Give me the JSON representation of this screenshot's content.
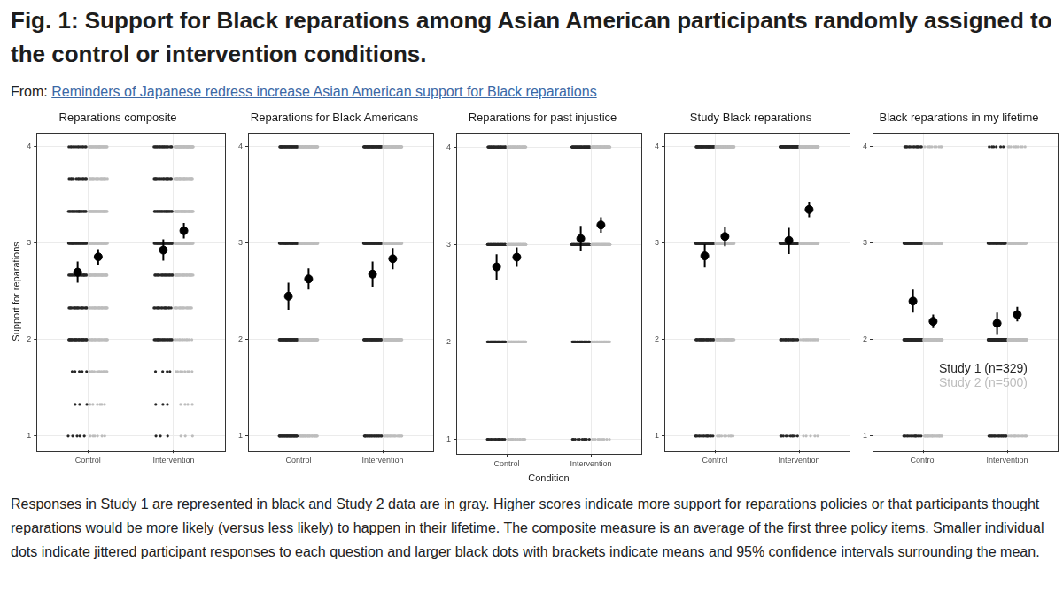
{
  "figure_title": "Fig. 1: Support for Black reparations among Asian American participants randomly assigned to the control or intervention conditions.",
  "source": {
    "prefix": "From:",
    "link_text": "Reminders of Japanese redress increase Asian American support for Black reparations"
  },
  "caption": "Responses in Study 1 are represented in black and Study 2 data are in gray. Higher scores indicate more support for reparations policies or that participants thought reparations would be more likely (versus less likely) to happen in their lifetime. The composite measure is an average of the first three policy items. Smaller individual dots indicate jittered participant responses to each question and larger black dots with brackets indicate means and 95% confidence intervals surrounding the mean.",
  "chart_data": [
    {
      "type": "scatter",
      "title": "Reparations composite",
      "ylabel": "Support for reparations",
      "categories": [
        "Control",
        "Intervention"
      ],
      "ylim": [
        0.85,
        4.15
      ],
      "yticks": [
        1,
        2,
        3,
        4
      ],
      "grid": true,
      "response_levels": [
        1,
        1.33,
        1.67,
        2,
        2.33,
        2.67,
        3,
        3.33,
        3.67,
        4
      ],
      "series": [
        {
          "color": "#262626",
          "values": [
            2.7,
            2.93
          ],
          "ci_low": [
            2.59,
            2.82
          ],
          "ci_high": [
            2.81,
            3.04
          ],
          "response_counts": [
            [
              5,
              3,
              5,
              30,
              18,
              22,
              35,
              22,
              12,
              13
            ],
            [
              3,
              3,
              4,
              22,
              15,
              20,
              40,
              22,
              15,
              20
            ]
          ]
        },
        {
          "color": "#bdbdbd",
          "values": [
            2.86,
            3.13
          ],
          "ci_low": [
            2.78,
            3.05
          ],
          "ci_high": [
            2.94,
            3.21
          ],
          "response_counts": [
            [
              6,
              6,
              12,
              25,
              25,
              38,
              50,
              35,
              18,
              35
            ],
            [
              3,
              4,
              8,
              12,
              18,
              30,
              60,
              40,
              25,
              50
            ]
          ]
        }
      ]
    },
    {
      "type": "scatter",
      "title": "Reparations for Black Americans",
      "categories": [
        "Control",
        "Intervention"
      ],
      "ylim": [
        0.85,
        4.15
      ],
      "yticks": [
        1,
        2,
        3,
        4
      ],
      "grid": true,
      "response_levels": [
        1,
        2,
        3,
        4
      ],
      "series": [
        {
          "color": "#262626",
          "values": [
            2.45,
            2.68
          ],
          "ci_low": [
            2.31,
            2.55
          ],
          "ci_high": [
            2.59,
            2.81
          ],
          "response_counts": [
            [
              35,
              50,
              45,
              35
            ],
            [
              22,
              45,
              55,
              42
            ]
          ]
        },
        {
          "color": "#bdbdbd",
          "values": [
            2.63,
            2.84
          ],
          "ci_low": [
            2.52,
            2.73
          ],
          "ci_high": [
            2.74,
            2.95
          ],
          "response_counts": [
            [
              30,
              80,
              80,
              60
            ],
            [
              20,
              65,
              90,
              75
            ]
          ]
        }
      ]
    },
    {
      "type": "scatter",
      "title": "Reparations for past injustice",
      "xlabel": "Condition",
      "categories": [
        "Control",
        "Intervention"
      ],
      "ylim": [
        0.85,
        4.15
      ],
      "yticks": [
        1,
        2,
        3,
        4
      ],
      "grid": true,
      "response_levels": [
        1,
        2,
        3,
        4
      ],
      "series": [
        {
          "color": "#262626",
          "values": [
            2.77,
            3.06
          ],
          "ci_low": [
            2.64,
            2.93
          ],
          "ci_high": [
            2.9,
            3.19
          ],
          "response_counts": [
            [
              15,
              40,
              70,
              40
            ],
            [
              10,
              28,
              72,
              54
            ]
          ]
        },
        {
          "color": "#bdbdbd",
          "values": [
            2.87,
            3.2
          ],
          "ci_low": [
            2.77,
            3.12
          ],
          "ci_high": [
            2.97,
            3.28
          ],
          "response_counts": [
            [
              15,
              60,
              110,
              65
            ],
            [
              8,
              35,
              110,
              97
            ]
          ]
        }
      ]
    },
    {
      "type": "scatter",
      "title": "Study Black reparations",
      "categories": [
        "Control",
        "Intervention"
      ],
      "ylim": [
        0.85,
        4.15
      ],
      "yticks": [
        1,
        2,
        3,
        4
      ],
      "grid": true,
      "response_levels": [
        1,
        2,
        3,
        4
      ],
      "series": [
        {
          "color": "#262626",
          "values": [
            2.87,
            3.03
          ],
          "ci_low": [
            2.75,
            2.89
          ],
          "ci_high": [
            2.99,
            3.16
          ],
          "response_counts": [
            [
              15,
              30,
              75,
              45
            ],
            [
              10,
              25,
              75,
              54
            ]
          ]
        },
        {
          "color": "#bdbdbd",
          "values": [
            3.07,
            3.35
          ],
          "ci_low": [
            2.97,
            3.27
          ],
          "ci_high": [
            3.17,
            3.43
          ],
          "response_counts": [
            [
              10,
              40,
              110,
              90
            ],
            [
              5,
              20,
              105,
              120
            ]
          ]
        }
      ]
    },
    {
      "type": "scatter",
      "title": "Black reparations in my lifetime",
      "legend": "bottom right",
      "categories": [
        "Control",
        "Intervention"
      ],
      "ylim": [
        0.85,
        4.15
      ],
      "yticks": [
        1,
        2,
        3,
        4
      ],
      "grid": true,
      "response_levels": [
        1,
        2,
        3,
        4
      ],
      "series": [
        {
          "name": "Study 1 (n=329)",
          "color": "#262626",
          "values": [
            2.4,
            2.17
          ],
          "ci_low": [
            2.28,
            2.05
          ],
          "ci_high": [
            2.52,
            2.28
          ],
          "response_counts": [
            [
              15,
              80,
              55,
              15
            ],
            [
              20,
              100,
              38,
              6
            ]
          ]
        },
        {
          "name": "Study 2 (n=500)",
          "color": "#bdbdbd",
          "values": [
            2.19,
            2.26
          ],
          "ci_low": [
            2.12,
            2.19
          ],
          "ci_high": [
            2.26,
            2.34
          ],
          "response_counts": [
            [
              25,
              155,
              60,
              10
            ],
            [
              15,
              160,
              65,
              10
            ]
          ]
        }
      ]
    }
  ]
}
